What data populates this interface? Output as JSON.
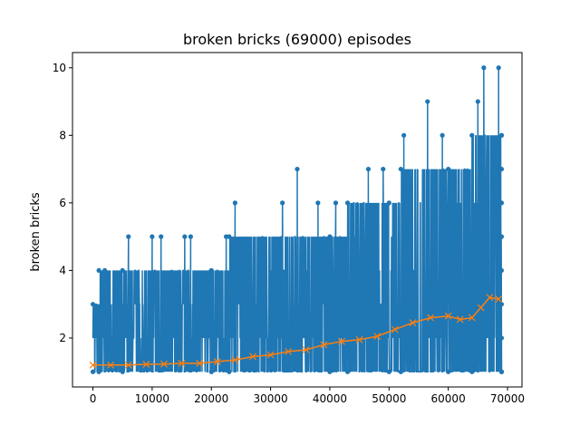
{
  "chart_data": {
    "type": "line",
    "title": "broken bricks (69000) episodes",
    "xlabel": "",
    "ylabel": "broken bricks",
    "xlim": [
      -3450,
      72450
    ],
    "ylim": [
      0.55,
      10.45
    ],
    "x_ticks": [
      0,
      10000,
      20000,
      30000,
      40000,
      50000,
      60000,
      70000
    ],
    "x_tick_labels": [
      "0",
      "10000",
      "20000",
      "30000",
      "40000",
      "50000",
      "60000",
      "70000"
    ],
    "y_ticks": [
      2,
      4,
      6,
      8,
      10
    ],
    "y_tick_labels": [
      "2",
      "4",
      "6",
      "8",
      "10"
    ],
    "grid": false,
    "series": [
      {
        "style": "line-with-dot-markers",
        "color": "#1f77b4",
        "note_spikes": [
          {
            "x": 2000,
            "y": 4
          },
          {
            "x": 6000,
            "y": 5
          },
          {
            "x": 10000,
            "y": 5
          },
          {
            "x": 11500,
            "y": 5
          },
          {
            "x": 15500,
            "y": 5
          },
          {
            "x": 16500,
            "y": 5
          },
          {
            "x": 22500,
            "y": 5
          },
          {
            "x": 24000,
            "y": 6
          },
          {
            "x": 32000,
            "y": 6
          },
          {
            "x": 34500,
            "y": 7
          },
          {
            "x": 38000,
            "y": 6
          },
          {
            "x": 41000,
            "y": 6
          },
          {
            "x": 46500,
            "y": 7
          },
          {
            "x": 49000,
            "y": 7
          },
          {
            "x": 52500,
            "y": 8
          },
          {
            "x": 56500,
            "y": 9
          },
          {
            "x": 59000,
            "y": 8
          },
          {
            "x": 65000,
            "y": 9
          },
          {
            "x": 66000,
            "y": 10
          },
          {
            "x": 68500,
            "y": 10
          }
        ],
        "envelope": [
          {
            "x": 0,
            "max": 3,
            "min": 1
          },
          {
            "x": 1000,
            "max": 4,
            "min": 1
          },
          {
            "x": 5000,
            "max": 4,
            "min": 1
          },
          {
            "x": 20000,
            "max": 4,
            "min": 1
          },
          {
            "x": 23000,
            "max": 5,
            "min": 1
          },
          {
            "x": 40000,
            "max": 5,
            "min": 1
          },
          {
            "x": 43000,
            "max": 6,
            "min": 1
          },
          {
            "x": 50000,
            "max": 6,
            "min": 1
          },
          {
            "x": 52000,
            "max": 7,
            "min": 1
          },
          {
            "x": 60000,
            "max": 7,
            "min": 1
          },
          {
            "x": 64000,
            "max": 8,
            "min": 1
          },
          {
            "x": 69000,
            "max": 8,
            "min": 1
          }
        ]
      },
      {
        "style": "line-with-x-markers",
        "color": "#ff7f0e",
        "x": [
          0,
          3000,
          6000,
          9000,
          12000,
          15000,
          18000,
          21000,
          24000,
          27000,
          30000,
          33000,
          36000,
          39000,
          42000,
          45000,
          48000,
          51000,
          54000,
          57000,
          60000,
          62000,
          64000,
          65500,
          67000,
          68500
        ],
        "y": [
          1.2,
          1.2,
          1.2,
          1.22,
          1.23,
          1.25,
          1.25,
          1.3,
          1.35,
          1.45,
          1.5,
          1.6,
          1.65,
          1.8,
          1.9,
          1.95,
          2.05,
          2.25,
          2.45,
          2.6,
          2.65,
          2.55,
          2.6,
          2.9,
          3.2,
          3.15
        ]
      }
    ]
  }
}
